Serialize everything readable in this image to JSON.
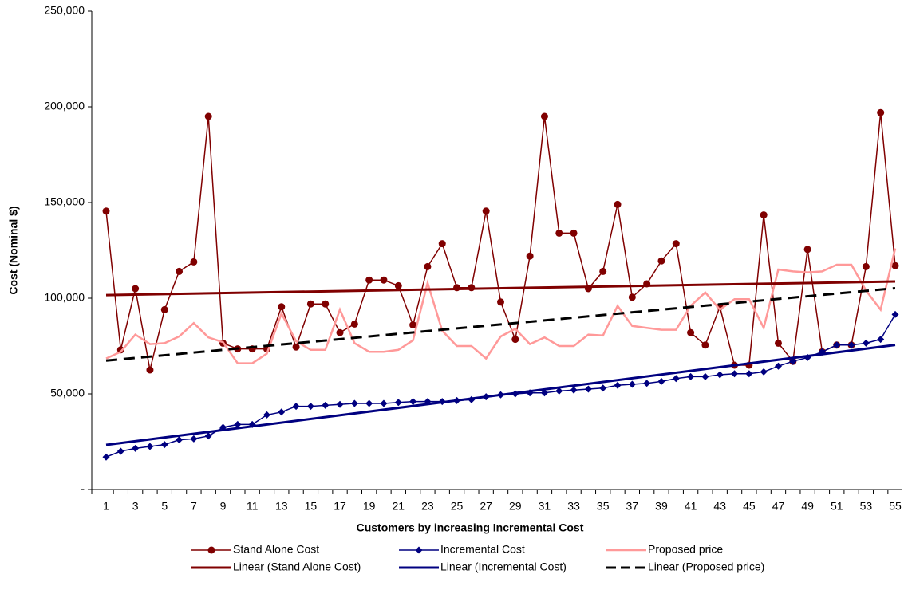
{
  "chart_data": {
    "type": "line",
    "xlabel": "Customers by increasing Incremental Cost",
    "ylabel": "Cost (Nominal $)",
    "categories": [
      1,
      null,
      3,
      null,
      5,
      null,
      7,
      null,
      9,
      null,
      11,
      null,
      13,
      null,
      15,
      null,
      17,
      null,
      19,
      null,
      21,
      null,
      23,
      null,
      25,
      null,
      27,
      null,
      29,
      null,
      31,
      null,
      33,
      null,
      35,
      null,
      37,
      null,
      39,
      null,
      41,
      null,
      43,
      null,
      45,
      null,
      47,
      null,
      49,
      null,
      51,
      null,
      53,
      null,
      55
    ],
    "ylim": [
      0,
      250000
    ],
    "yticks": [
      {
        "value": 0,
        "label": "-"
      },
      {
        "value": 50000,
        "label": "50,000"
      },
      {
        "value": 100000,
        "label": "100,000"
      },
      {
        "value": 150000,
        "label": "150,000"
      },
      {
        "value": 200000,
        "label": "200,000"
      },
      {
        "value": 250000,
        "label": "250,000"
      }
    ],
    "series": [
      {
        "name": "Stand Alone Cost",
        "color": "#800000",
        "marker": "circle",
        "values": [
          145500,
          73000,
          105000,
          62500,
          94000,
          114000,
          119000,
          195000,
          76500,
          73500,
          73500,
          73500,
          95500,
          74500,
          97000,
          97000,
          82000,
          86500,
          109500,
          109500,
          106500,
          86000,
          116500,
          128500,
          105500,
          105500,
          145500,
          98000,
          78500,
          122000,
          195000,
          134000,
          134000,
          105000,
          114000,
          149000,
          100500,
          107500,
          119500,
          128500,
          82000,
          75500,
          95500,
          65000,
          65000,
          143500,
          76500,
          67000,
          125500,
          72000,
          75500,
          75500,
          116500,
          197000,
          117000
        ]
      },
      {
        "name": "Incremental Cost",
        "color": "#000080",
        "marker": "diamond",
        "values": [
          17000,
          20000,
          21500,
          22500,
          23500,
          26000,
          26500,
          28000,
          32500,
          34000,
          34000,
          39000,
          40500,
          43500,
          43500,
          44000,
          44500,
          45000,
          45000,
          45000,
          45500,
          46000,
          46000,
          46000,
          46500,
          47000,
          48500,
          49500,
          50000,
          50500,
          50500,
          51500,
          52000,
          52500,
          53000,
          54500,
          55000,
          55500,
          56500,
          58000,
          59000,
          59000,
          60000,
          60500,
          60500,
          61500,
          64500,
          67000,
          69000,
          72000,
          75500,
          75500,
          76500,
          78500,
          91500
        ]
      },
      {
        "name": "Proposed price",
        "color": "#ff9999",
        "marker": "none",
        "values": [
          68500,
          72000,
          81000,
          76000,
          76500,
          80000,
          87000,
          79500,
          77000,
          66000,
          66000,
          71000,
          92000,
          77500,
          73000,
          73000,
          94000,
          76500,
          72000,
          72000,
          73000,
          78000,
          108000,
          83000,
          75000,
          75000,
          68500,
          80000,
          84000,
          76000,
          79500,
          75000,
          75000,
          81000,
          80500,
          96000,
          85500,
          84500,
          83500,
          83500,
          96000,
          103000,
          94000,
          99500,
          99500,
          84500,
          115000,
          114000,
          113500,
          114000,
          117500,
          117500,
          104000,
          94000,
          126000
        ]
      }
    ],
    "trendlines": [
      {
        "name": "Linear (Stand Alone Cost)",
        "of": 0,
        "color": "#800000",
        "dash": false
      },
      {
        "name": "Linear (Incremental Cost)",
        "of": 1,
        "color": "#000080",
        "dash": false
      },
      {
        "name": "Linear (Proposed price)",
        "of": 2,
        "color": "#000000",
        "dash": true
      }
    ]
  }
}
